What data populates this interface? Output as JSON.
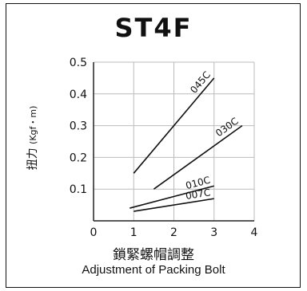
{
  "chart_data": {
    "type": "line",
    "title": "ST4F",
    "ylabel": "扭力",
    "ylabel_unit": "(Kgf・m)",
    "xlabel": "鎖緊螺帽調整",
    "xlabel_en": "Adjustment of Packing Bolt",
    "xlim": [
      0,
      4
    ],
    "ylim": [
      0,
      0.5
    ],
    "x_ticks": [
      "0",
      "1",
      "2",
      "3",
      "4"
    ],
    "y_ticks": [
      "0.1",
      "0.2",
      "0.3",
      "0.4",
      "0.5"
    ],
    "grid": true,
    "series": [
      {
        "name": "045C",
        "x": [
          1,
          3
        ],
        "y": [
          0.15,
          0.45
        ]
      },
      {
        "name": "030C",
        "x": [
          1.5,
          3.7
        ],
        "y": [
          0.1,
          0.3
        ]
      },
      {
        "name": "010C",
        "x": [
          0.9,
          3.0
        ],
        "y": [
          0.04,
          0.11
        ]
      },
      {
        "name": "007C",
        "x": [
          1.0,
          3.0
        ],
        "y": [
          0.03,
          0.07
        ]
      }
    ]
  }
}
